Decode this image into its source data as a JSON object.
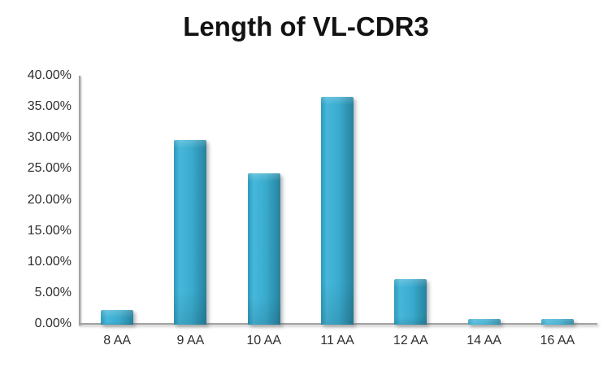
{
  "chart_data": {
    "type": "bar",
    "title": "Length of VL-CDR3",
    "categories": [
      "8 AA",
      "9 AA",
      "10 AA",
      "11 AA",
      "12 AA",
      "14 AA",
      "16 AA"
    ],
    "values": [
      2.2,
      29.6,
      24.2,
      36.6,
      7.2,
      0.8,
      0.8
    ],
    "value_unit": "%",
    "series_name": "Length of VL-CDR3",
    "xlabel": "",
    "ylabel": "",
    "ylim": [
      0,
      40
    ],
    "y_tick_values": [
      0,
      5,
      10,
      15,
      20,
      25,
      30,
      35,
      40
    ],
    "y_tick_labels": [
      "0.00%",
      "5.00%",
      "10.00%",
      "15.00%",
      "20.00%",
      "25.00%",
      "30.00%",
      "35.00%",
      "40.00%"
    ],
    "grid": false,
    "legend_position": "none",
    "bar_color": "#38a8cb",
    "bar_color_light": "#46b7da",
    "bar_color_dark": "#27819d",
    "axis_color": "#a2a2a2",
    "text_color": "#2e2e2e",
    "title_color": "#121212",
    "background_color": "#ffffff"
  }
}
